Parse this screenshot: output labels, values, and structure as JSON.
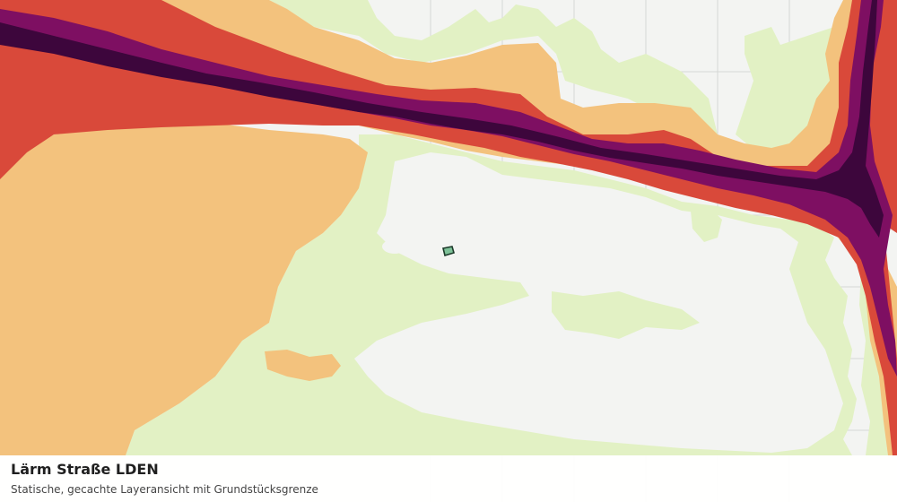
{
  "caption": {
    "title": "Lärm Straße LDEN",
    "subtitle": "Statische, gecachte Layeransicht mit Grundstücksgrenze"
  },
  "colors": {
    "base": "#f3f4f2",
    "grid": "#d6d8d5",
    "green": "#e2f1c4",
    "orange_light": "#f3c27d",
    "orange_red": "#d9493a",
    "purple": "#7e0f62",
    "purple_dark": "#3d063c",
    "parcel_fill": "#55b07a",
    "parcel_stroke": "#1c3a2a"
  }
}
